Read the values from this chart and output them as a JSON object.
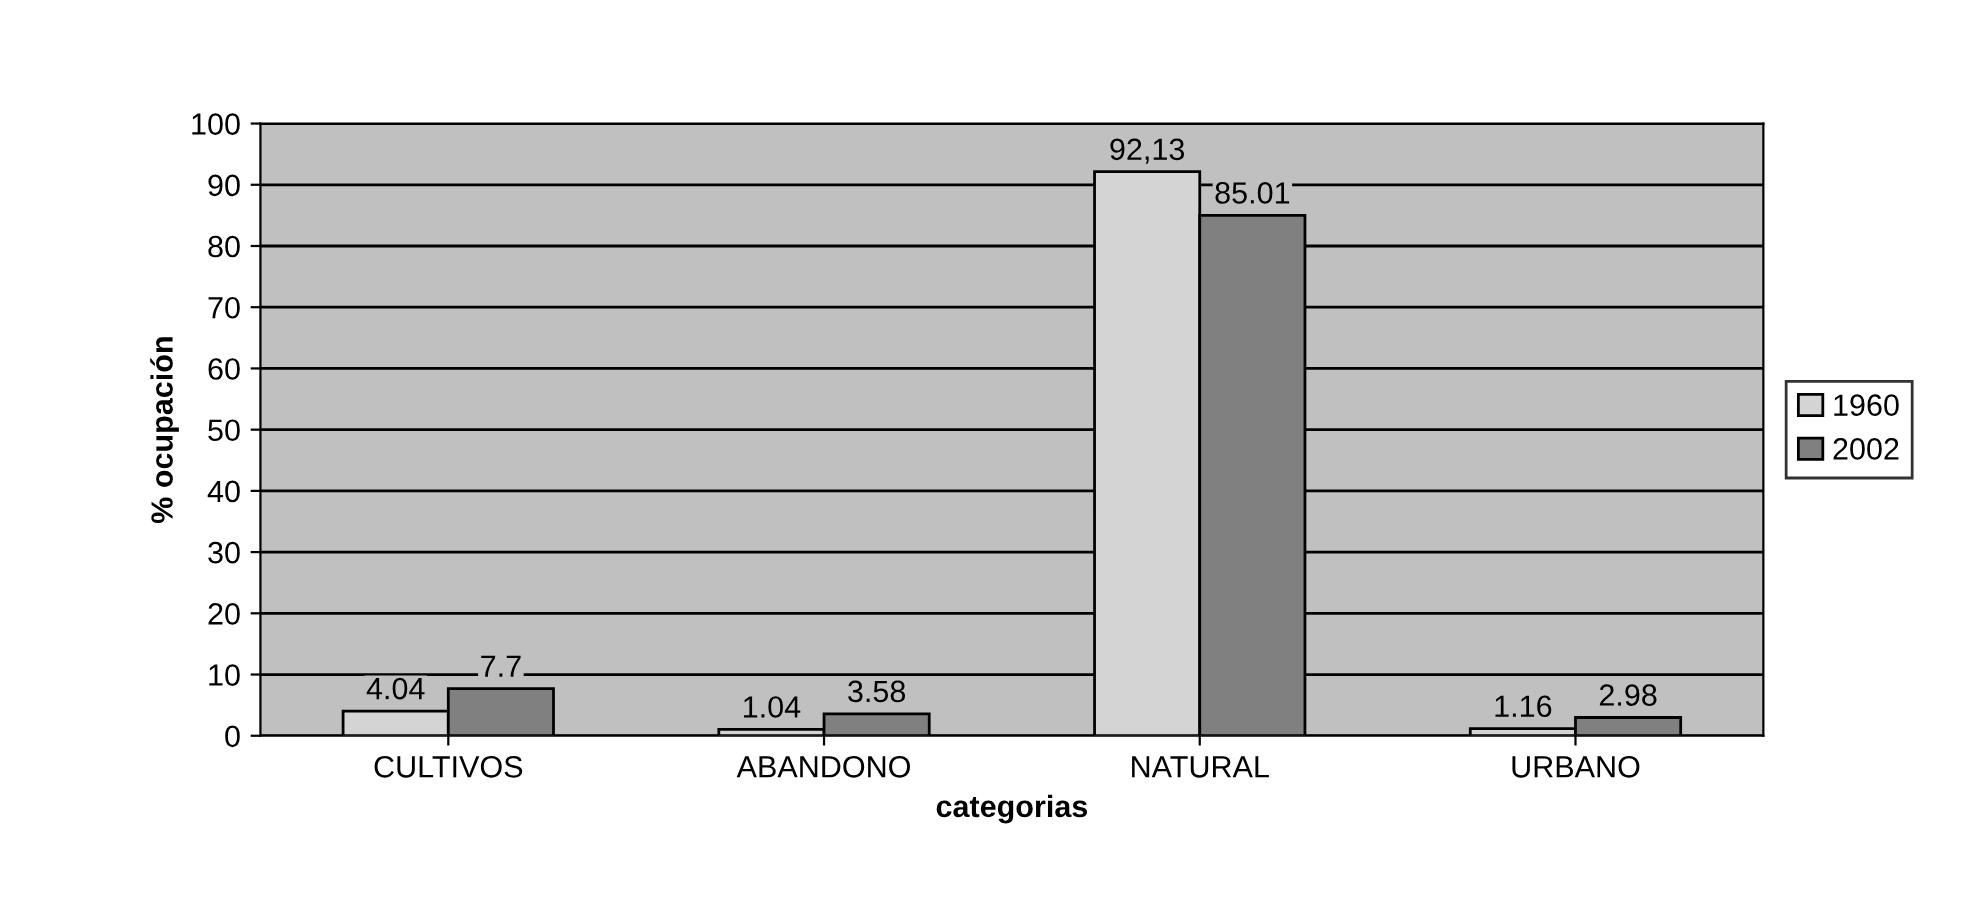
{
  "chart_data": {
    "type": "bar",
    "xlabel": "categorias",
    "ylabel": "% ocupación",
    "categories": [
      "CULTIVOS",
      "ABANDONO",
      "NATURAL",
      "URBANO"
    ],
    "series": [
      {
        "name": "1960",
        "color": "#d4d4d4",
        "values": [
          4.04,
          1.04,
          92.13,
          1.16
        ],
        "value_labels": [
          "4.04",
          "1.04",
          "92,13",
          "1.16"
        ]
      },
      {
        "name": "2002",
        "color": "#808080",
        "values": [
          7.7,
          3.58,
          85.01,
          2.98
        ],
        "value_labels": [
          "7.7",
          "3.58",
          "85.01",
          "2.98"
        ]
      }
    ],
    "ylim": [
      0,
      100
    ],
    "yticks": [
      0,
      10,
      20,
      30,
      40,
      50,
      60,
      70,
      80,
      90,
      100
    ],
    "grid": "y",
    "legend": "right"
  }
}
